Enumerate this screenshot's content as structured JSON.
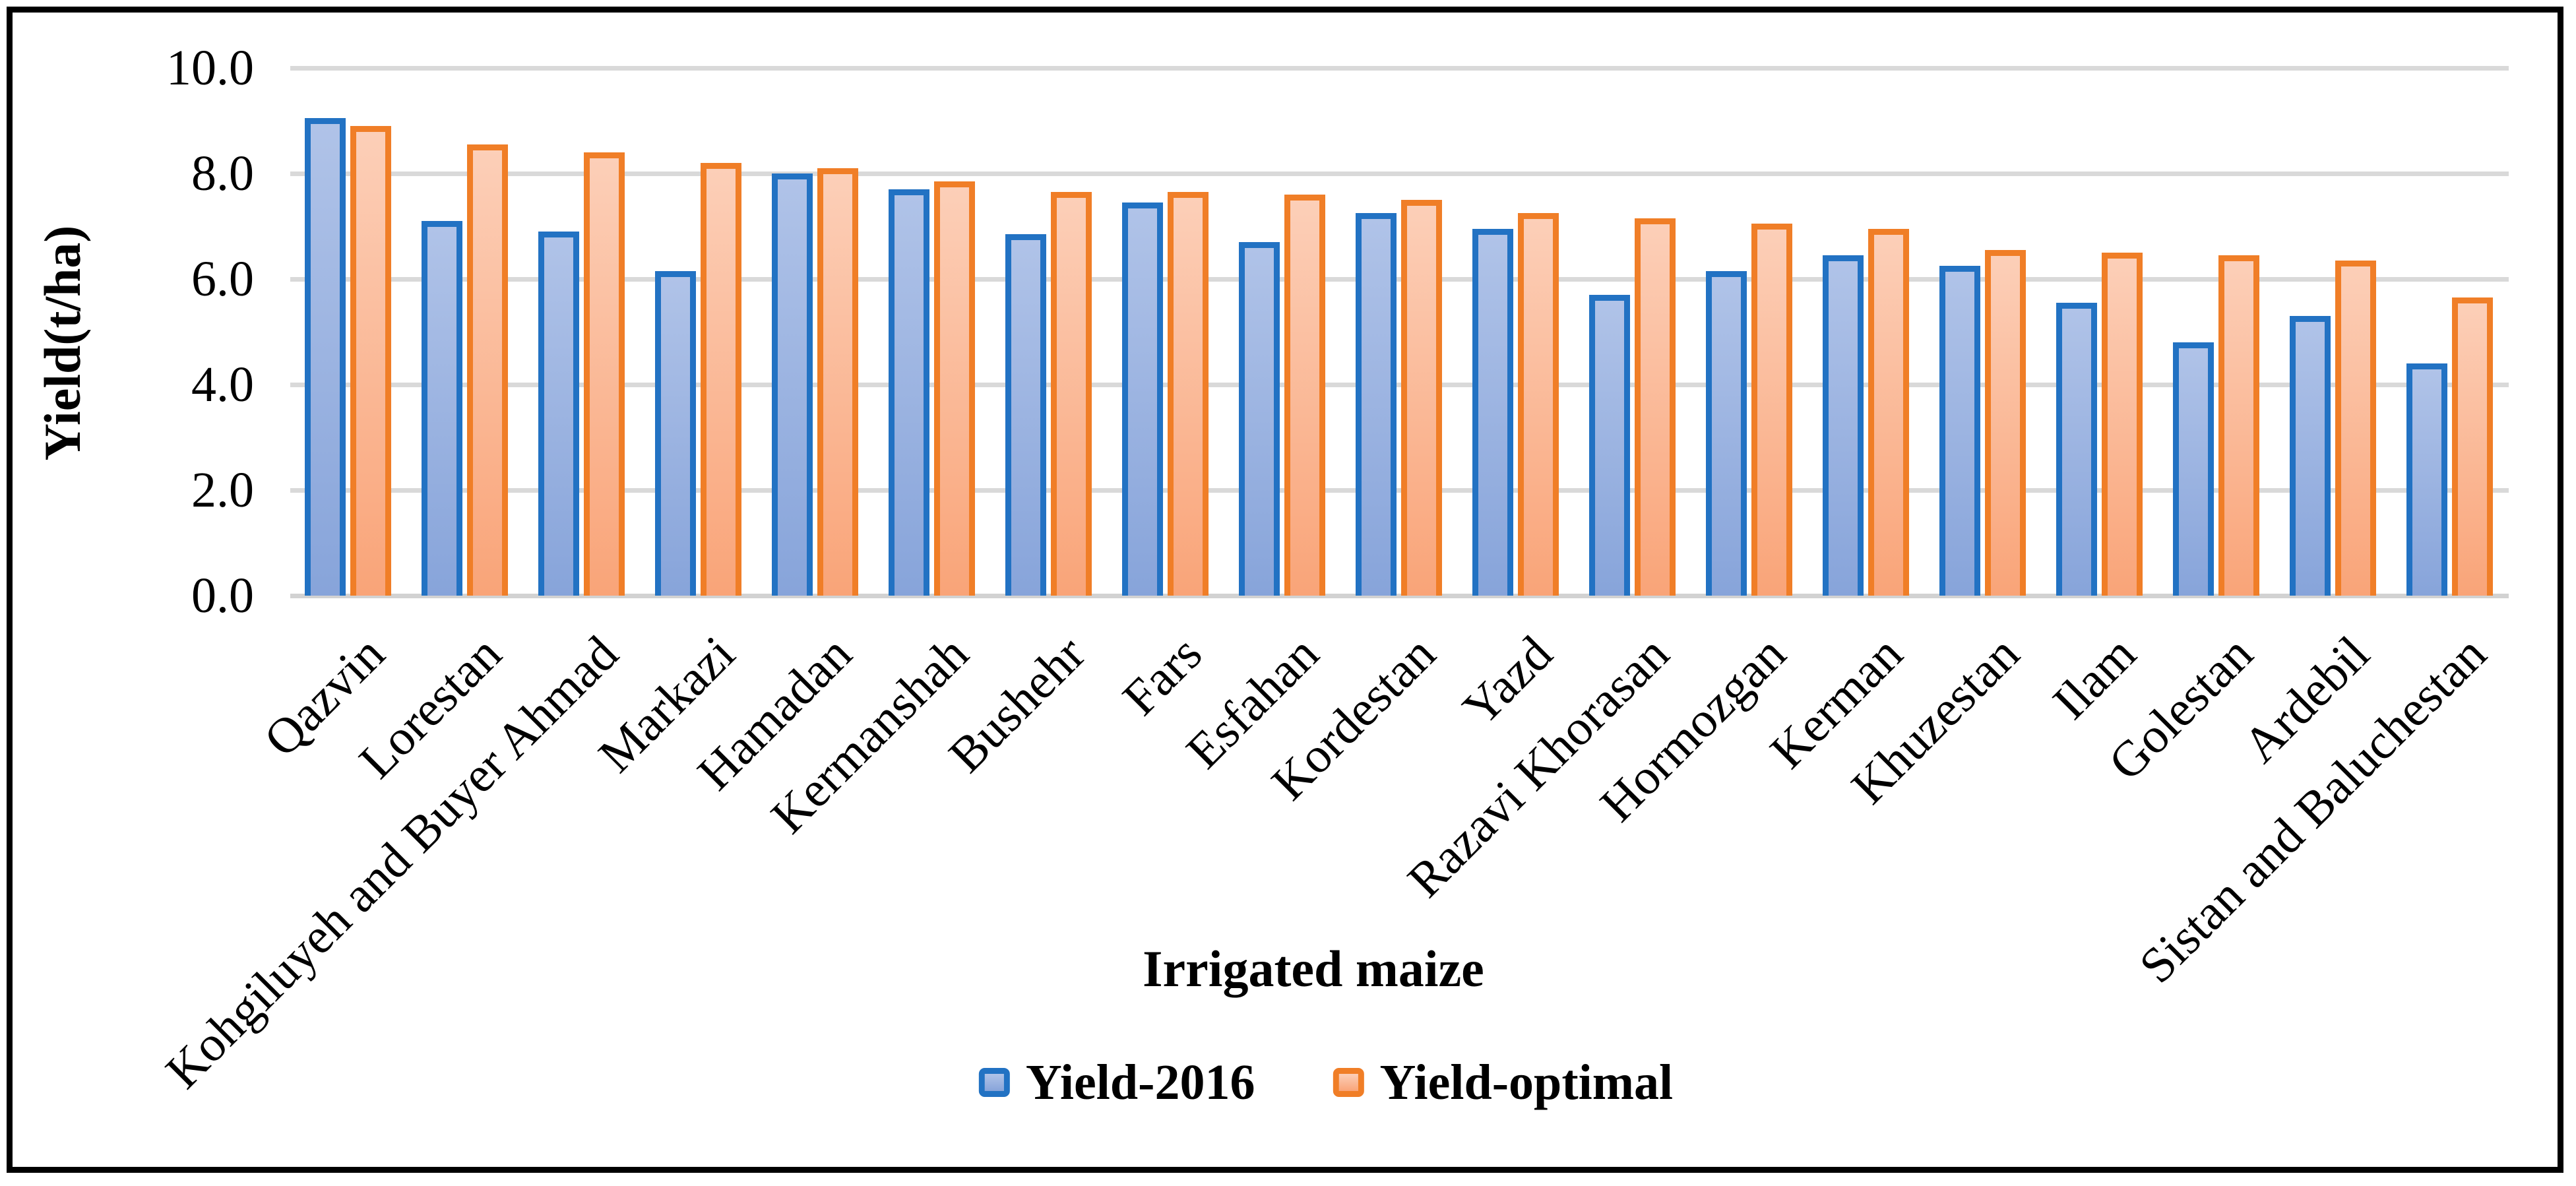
{
  "chart_data": {
    "type": "bar",
    "title": "",
    "xlabel": "Irrigated maize",
    "ylabel": "Yield(t/ha)",
    "categories": [
      "Qazvin",
      "Lorestan",
      "Kohgiluyeh and Buyer Ahmad",
      "Markazi",
      "Hamadan",
      "Kermanshah",
      "Bushehr",
      "Fars",
      "Esfahan",
      "Kordestan",
      "Yazd",
      "Razavi Khorasan",
      "Hormozgan",
      "Kerman",
      "Khuzestan",
      "Ilam",
      "Golestan",
      "Ardebil",
      "Sistan and Baluchestan"
    ],
    "series": [
      {
        "name": "Yield-2016",
        "values": [
          9.05,
          7.1,
          6.9,
          6.15,
          8.0,
          7.7,
          6.85,
          7.45,
          6.7,
          7.25,
          6.95,
          5.7,
          6.15,
          6.45,
          6.25,
          5.55,
          4.8,
          5.3,
          4.4
        ],
        "border_color": "#2272C3",
        "fill_top": "#B0C3E8",
        "fill_bottom": "#87A4DA"
      },
      {
        "name": "Yield-optimal",
        "values": [
          8.9,
          8.55,
          8.4,
          8.2,
          8.1,
          7.85,
          7.65,
          7.65,
          7.6,
          7.5,
          7.25,
          7.15,
          7.05,
          6.95,
          6.55,
          6.5,
          6.45,
          6.35,
          5.65
        ],
        "border_color": "#F07E27",
        "fill_top": "#FCCFB8",
        "fill_bottom": "#F9A478"
      }
    ],
    "ylim": [
      0,
      10
    ],
    "yticks": [
      {
        "label": "10.0",
        "value": 10
      },
      {
        "label": "8.0",
        "value": 8
      },
      {
        "label": "6.0",
        "value": 6
      },
      {
        "label": "4.0",
        "value": 4
      },
      {
        "label": "2.0",
        "value": 2
      },
      {
        "label": "0.0",
        "value": 0
      }
    ],
    "grid": true,
    "grid_color": "#D9D9D9",
    "axis_line_color": "#D2D2D2",
    "frame_border_color": "#000000",
    "background_color": "#FFFFFF",
    "legend_position": "bottom"
  }
}
